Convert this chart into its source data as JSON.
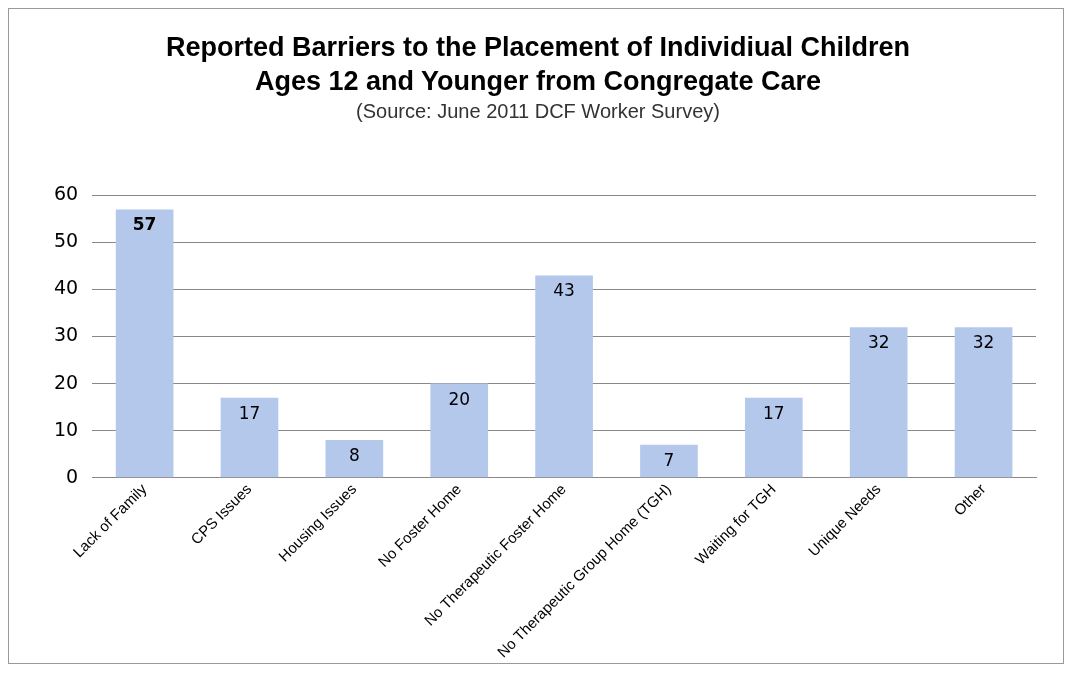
{
  "chart_data": {
    "type": "bar",
    "title": "Reported Barriers to the Placement of Individiual Children Ages 12 and Younger from Congregate Care",
    "subtitle": "(Source: June 2011 DCF Worker Survey)",
    "categories": [
      "Lack of Family",
      "CPS Issues",
      "Housing Issues",
      "No Foster Home",
      "No Therapeutic Foster Home",
      "No Therapeutic Group Home (TGH)",
      "Waiting for TGH",
      "Unique Needs",
      "Other"
    ],
    "values": [
      57,
      17,
      8,
      20,
      43,
      7,
      17,
      32,
      32
    ],
    "color": "#b4c8ec",
    "ylim": [
      0,
      60
    ],
    "yticks": [
      0,
      10,
      20,
      30,
      40,
      50,
      60
    ],
    "grid": "y",
    "legend": false,
    "data_labels": true
  }
}
